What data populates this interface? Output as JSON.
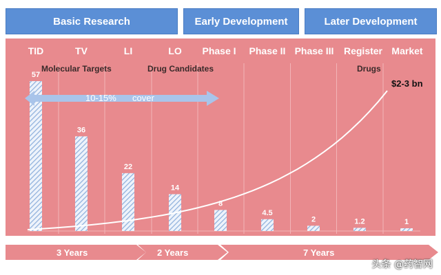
{
  "phases": [
    {
      "label": "Basic Research"
    },
    {
      "label": "Early Development"
    },
    {
      "label": "Later Development"
    }
  ],
  "colors": {
    "header_blue": "#5b8fd6",
    "panel_pink": "#e88a8e",
    "bar_hatch": "#9bb8e0",
    "arrow_blue": "#a9c4ea",
    "timeline_pink": "#e88a8e"
  },
  "chart_data": {
    "type": "bar",
    "categories": [
      "TID",
      "TV",
      "LI",
      "LO",
      "Phase I",
      "Phase II",
      "Phase III",
      "Register",
      "Market"
    ],
    "values": [
      57,
      36,
      22,
      14,
      8,
      4.5,
      2,
      1.2,
      1
    ],
    "value_labels": [
      "57",
      "36",
      "22",
      "14",
      "8",
      "4.5",
      "2",
      "1.2",
      "1"
    ],
    "ylim": [
      0,
      60
    ],
    "group_labels": [
      "Molecular Targets",
      "Drug Candidates",
      "Drugs"
    ],
    "cost_label": "$2-3 bn",
    "coverage_arrow": {
      "pct": "10-15%",
      "word": "cover"
    }
  },
  "timeline": [
    {
      "label": "3 Years"
    },
    {
      "label": "2 Years"
    },
    {
      "label": "7 Years"
    }
  ],
  "watermark": "头条 @药智网"
}
